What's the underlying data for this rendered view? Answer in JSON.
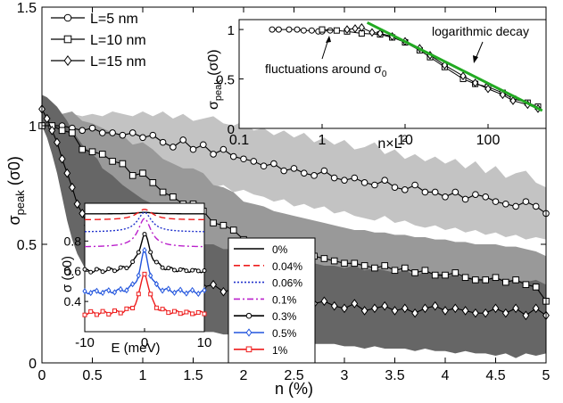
{
  "chart_data": [
    {
      "type": "line",
      "xlabel": "n (%)",
      "ylabel": "σ",
      "ylabel_sub": "peak",
      "ylabel_unit": "(σ0)",
      "xlim": [
        0,
        5
      ],
      "ylim": [
        0,
        1.5
      ],
      "x_ticks": [
        "0",
        "0.5",
        "1",
        "1.5",
        "2",
        "2.5",
        "3",
        "3.5",
        "4",
        "4.5",
        "5"
      ],
      "y_ticks": [
        "0",
        "0.5",
        "1",
        "1.5"
      ],
      "grid": false,
      "legend_position": "top-left",
      "series": [
        {
          "name": "L=5 nm",
          "marker": "circle",
          "band_color": "#c3c3c3",
          "x": [
            0,
            0.1,
            0.2,
            0.3,
            0.4,
            0.5,
            0.6,
            0.7,
            0.8,
            0.9,
            1.0,
            1.1,
            1.2,
            1.3,
            1.4,
            1.5,
            1.6,
            1.7,
            1.8,
            1.9,
            2.0,
            2.1,
            2.2,
            2.3,
            2.4,
            2.5,
            2.6,
            2.7,
            2.8,
            2.9,
            3.0,
            3.1,
            3.2,
            3.3,
            3.4,
            3.5,
            3.6,
            3.7,
            3.8,
            3.9,
            4.0,
            4.1,
            4.2,
            4.3,
            4.4,
            4.5,
            4.6,
            4.7,
            4.8,
            4.9,
            5.0
          ],
          "values": [
            1.0,
            1.0,
            1.0,
            0.99,
            0.98,
            0.99,
            0.97,
            0.97,
            0.96,
            0.97,
            0.95,
            0.96,
            0.93,
            0.91,
            0.94,
            0.9,
            0.92,
            0.88,
            0.9,
            0.87,
            0.86,
            0.85,
            0.83,
            0.84,
            0.81,
            0.82,
            0.8,
            0.79,
            0.81,
            0.78,
            0.77,
            0.78,
            0.76,
            0.75,
            0.77,
            0.74,
            0.73,
            0.75,
            0.72,
            0.72,
            0.7,
            0.72,
            0.69,
            0.71,
            0.7,
            0.68,
            0.67,
            0.66,
            0.68,
            0.66,
            0.63
          ],
          "band_upper": [
            1.0,
            1.02,
            1.03,
            1.05,
            1.04,
            1.05,
            1.04,
            1.06,
            1.05,
            1.04,
            1.06,
            1.04,
            1.06,
            1.03,
            1.05,
            1.02,
            1.03,
            1.04,
            1.01,
            1.0,
            1.02,
            0.98,
            0.99,
            0.96,
            0.98,
            0.95,
            0.97,
            0.93,
            0.95,
            0.92,
            0.94,
            0.9,
            0.91,
            0.93,
            0.88,
            0.9,
            0.86,
            0.88,
            0.85,
            0.87,
            0.84,
            0.86,
            0.82,
            0.85,
            0.8,
            0.83,
            0.78,
            0.8,
            0.81,
            0.76,
            0.74
          ],
          "band_lower": [
            1.0,
            0.98,
            0.97,
            0.94,
            0.92,
            0.9,
            0.89,
            0.87,
            0.85,
            0.84,
            0.83,
            0.82,
            0.8,
            0.78,
            0.8,
            0.77,
            0.76,
            0.74,
            0.75,
            0.72,
            0.73,
            0.71,
            0.7,
            0.68,
            0.69,
            0.66,
            0.67,
            0.65,
            0.66,
            0.63,
            0.64,
            0.62,
            0.61,
            0.6,
            0.62,
            0.59,
            0.6,
            0.58,
            0.57,
            0.58,
            0.56,
            0.57,
            0.55,
            0.56,
            0.54,
            0.55,
            0.53,
            0.54,
            0.52,
            0.53,
            0.52
          ]
        },
        {
          "name": "L=10 nm",
          "marker": "square",
          "band_color": "#999999",
          "x": [
            0,
            0.1,
            0.2,
            0.3,
            0.4,
            0.5,
            0.6,
            0.7,
            0.8,
            0.9,
            1.0,
            1.1,
            1.2,
            1.3,
            1.4,
            1.5,
            1.6,
            1.7,
            1.8,
            1.9,
            2.0,
            2.1,
            2.2,
            2.3,
            2.4,
            2.5,
            2.6,
            2.7,
            2.8,
            2.9,
            3.0,
            3.1,
            3.2,
            3.3,
            3.4,
            3.5,
            3.6,
            3.7,
            3.8,
            3.9,
            4.0,
            4.1,
            4.2,
            4.3,
            4.4,
            4.5,
            4.6,
            4.7,
            4.8,
            4.9,
            5.0
          ],
          "values": [
            1.0,
            1.0,
            0.98,
            0.97,
            0.9,
            0.89,
            0.88,
            0.85,
            0.84,
            0.79,
            0.8,
            0.76,
            0.72,
            0.7,
            0.67,
            0.67,
            0.64,
            0.59,
            0.58,
            0.56,
            0.52,
            0.51,
            0.5,
            0.48,
            0.47,
            0.46,
            0.45,
            0.45,
            0.44,
            0.43,
            0.42,
            0.42,
            0.41,
            0.4,
            0.41,
            0.39,
            0.4,
            0.38,
            0.39,
            0.37,
            0.37,
            0.38,
            0.36,
            0.35,
            0.35,
            0.36,
            0.34,
            0.35,
            0.33,
            0.32,
            0.26
          ],
          "band_upper": [
            1.0,
            1.02,
            1.05,
            1.06,
            1.02,
            1.01,
            0.99,
            0.97,
            0.96,
            0.92,
            0.93,
            0.9,
            0.86,
            0.84,
            0.82,
            0.82,
            0.8,
            0.75,
            0.74,
            0.72,
            0.68,
            0.67,
            0.66,
            0.64,
            0.63,
            0.62,
            0.61,
            0.6,
            0.59,
            0.58,
            0.57,
            0.56,
            0.56,
            0.55,
            0.55,
            0.54,
            0.54,
            0.53,
            0.53,
            0.52,
            0.52,
            0.51,
            0.51,
            0.5,
            0.5,
            0.5,
            0.49,
            0.49,
            0.48,
            0.47,
            0.45
          ],
          "band_lower": [
            1.0,
            0.96,
            0.9,
            0.86,
            0.78,
            0.75,
            0.72,
            0.68,
            0.65,
            0.62,
            0.6,
            0.57,
            0.54,
            0.52,
            0.5,
            0.48,
            0.46,
            0.42,
            0.41,
            0.39,
            0.37,
            0.35,
            0.34,
            0.33,
            0.32,
            0.31,
            0.3,
            0.3,
            0.29,
            0.28,
            0.28,
            0.27,
            0.27,
            0.26,
            0.26,
            0.25,
            0.25,
            0.24,
            0.24,
            0.23,
            0.23,
            0.22,
            0.22,
            0.22,
            0.21,
            0.21,
            0.2,
            0.2,
            0.2,
            0.19,
            0.16
          ]
        },
        {
          "name": "L=15 nm",
          "marker": "diamond",
          "band_color": "#666666",
          "x": [
            0,
            0.05,
            0.1,
            0.15,
            0.2,
            0.25,
            0.3,
            0.35,
            0.4,
            0.45,
            0.5,
            0.55,
            0.6,
            0.7,
            0.8,
            0.9,
            1.0,
            1.1,
            1.2,
            1.3,
            1.4,
            1.5,
            1.6,
            1.7,
            1.8,
            1.9,
            2.0,
            2.1,
            2.2,
            2.3,
            2.4,
            2.5,
            2.6,
            2.7,
            2.8,
            2.9,
            3.0,
            3.1,
            3.2,
            3.3,
            3.4,
            3.5,
            3.6,
            3.7,
            3.8,
            3.9,
            4.0,
            4.1,
            4.2,
            4.3,
            4.4,
            4.5,
            4.6,
            4.7,
            4.8,
            4.9,
            5.0
          ],
          "values": [
            1.07,
            1.03,
            0.98,
            0.93,
            0.86,
            0.8,
            0.74,
            0.67,
            0.63,
            0.58,
            0.55,
            0.52,
            0.55,
            0.51,
            0.5,
            0.49,
            0.46,
            0.47,
            0.42,
            0.39,
            0.36,
            0.34,
            0.32,
            0.33,
            0.3,
            0.31,
            0.29,
            0.3,
            0.27,
            0.28,
            0.27,
            0.26,
            0.27,
            0.25,
            0.26,
            0.24,
            0.23,
            0.25,
            0.22,
            0.23,
            0.24,
            0.22,
            0.23,
            0.21,
            0.23,
            0.24,
            0.22,
            0.23,
            0.22,
            0.21,
            0.21,
            0.23,
            0.21,
            0.23,
            0.2,
            0.23,
            0.2
          ],
          "band_upper": [
            1.13,
            1.12,
            1.1,
            1.08,
            1.05,
            1.02,
            0.98,
            0.95,
            0.92,
            0.9,
            0.88,
            0.86,
            0.82,
            0.79,
            0.75,
            0.72,
            0.69,
            0.67,
            0.63,
            0.6,
            0.56,
            0.53,
            0.5,
            0.5,
            0.48,
            0.48,
            0.46,
            0.47,
            0.44,
            0.45,
            0.43,
            0.43,
            0.42,
            0.42,
            0.41,
            0.41,
            0.4,
            0.41,
            0.39,
            0.4,
            0.39,
            0.38,
            0.39,
            0.37,
            0.38,
            0.38,
            0.37,
            0.37,
            0.36,
            0.36,
            0.35,
            0.36,
            0.35,
            0.35,
            0.34,
            0.35,
            0.33
          ],
          "band_lower": [
            1.0,
            0.95,
            0.88,
            0.8,
            0.7,
            0.6,
            0.52,
            0.46,
            0.42,
            0.38,
            0.35,
            0.33,
            0.32,
            0.3,
            0.28,
            0.26,
            0.25,
            0.24,
            0.2,
            0.18,
            0.16,
            0.15,
            0.13,
            0.13,
            0.12,
            0.12,
            0.11,
            0.11,
            0.1,
            0.1,
            0.09,
            0.09,
            0.09,
            0.08,
            0.08,
            0.08,
            0.07,
            0.07,
            0.06,
            0.07,
            0.06,
            0.06,
            0.06,
            0.05,
            0.06,
            0.05,
            0.05,
            0.04,
            0.05,
            0.04,
            0.04,
            0.03,
            0.04,
            0.02,
            0.04,
            0.03,
            0.04
          ]
        }
      ]
    },
    {
      "type": "line",
      "xlabel": "n×L",
      "xlabel_sup": "2",
      "ylabel": "σ",
      "ylabel_sub": "peak",
      "ylabel_unit": "(σ0)",
      "x_scale": "log",
      "xlim": [
        0.1,
        500
      ],
      "ylim": [
        0,
        1.1
      ],
      "x_ticks": [
        "0.1",
        "1",
        "10",
        "100"
      ],
      "y_ticks": [
        "0",
        "0.5",
        "1"
      ],
      "annotations": [
        {
          "text": "fluctuations around σ",
          "sub": "0"
        },
        {
          "text": "logarithmic decay"
        }
      ],
      "series": [
        {
          "name": "L=5 nm",
          "marker": "circle",
          "x": [
            0.25,
            0.3,
            0.4,
            0.5,
            0.6,
            0.75,
            0.9,
            1.0,
            1.25
          ],
          "values": [
            1.0,
            1.0,
            1.0,
            1.0,
            0.99,
            0.99,
            0.98,
            0.98,
            0.99
          ]
        },
        {
          "name": "L=10 nm",
          "marker": "square",
          "x": [
            1.0,
            1.5,
            2,
            3,
            5,
            7,
            10,
            15,
            20,
            30,
            50,
            70,
            100,
            150,
            200,
            300,
            400
          ],
          "values": [
            1.0,
            0.99,
            0.98,
            0.96,
            0.95,
            0.92,
            0.87,
            0.79,
            0.72,
            0.62,
            0.5,
            0.45,
            0.42,
            0.36,
            0.3,
            0.26,
            0.22
          ]
        },
        {
          "name": "L=15 nm",
          "marker": "diamond",
          "x": [
            2,
            2.5,
            3,
            4,
            5,
            7,
            10,
            15,
            20,
            30,
            50,
            70,
            100,
            150,
            200,
            300,
            400
          ],
          "values": [
            1.0,
            1.01,
            1.02,
            0.97,
            0.96,
            0.93,
            0.88,
            0.81,
            0.74,
            0.64,
            0.53,
            0.46,
            0.4,
            0.34,
            0.28,
            0.24,
            0.2
          ]
        },
        {
          "name": "",
          "marker": "none",
          "color": "#22aa22",
          "x": [
            3.5,
            450
          ],
          "values": [
            1.07,
            0.18
          ]
        }
      ]
    },
    {
      "type": "line",
      "xlabel": "E (meV)",
      "ylabel": "σ",
      "ylabel_unit": "(σ0)",
      "xlim": [
        -10,
        10
      ],
      "ylim": [
        0.2,
        1.05
      ],
      "x_ticks": [
        "-10",
        "0",
        "10"
      ],
      "y_ticks": [
        "0.4",
        "0.6",
        "0.8"
      ],
      "series": [
        {
          "name": "0%",
          "color": "#000000",
          "style": "solid",
          "marker": "none",
          "baseline": 0.98,
          "peak": 0.01,
          "width": 1.5
        },
        {
          "name": "0.04%",
          "color": "#ee1c1c",
          "style": "dashed",
          "marker": "none",
          "baseline": 0.94,
          "peak": 0.07,
          "width": 1.6
        },
        {
          "name": "0.06%",
          "color": "#2233cc",
          "style": "dotted",
          "marker": "none",
          "baseline": 0.86,
          "peak": 0.13,
          "width": 1.4
        },
        {
          "name": "0.1%",
          "color": "#bb22cc",
          "style": "dashdot",
          "marker": "none",
          "baseline": 0.76,
          "peak": 0.19,
          "width": 1.3
        },
        {
          "name": "0.3%",
          "color": "#000000",
          "style": "solid",
          "marker": "circle",
          "baseline": 0.6,
          "peak": 0.24,
          "width": 1.1
        },
        {
          "name": "0.5%",
          "color": "#2255dd",
          "style": "solid",
          "marker": "diamond",
          "baseline": 0.46,
          "peak": 0.27,
          "width": 0.9
        },
        {
          "name": "1%",
          "color": "#ee1c1c",
          "style": "solid",
          "marker": "square",
          "baseline": 0.32,
          "peak": 0.27,
          "width": 0.9
        }
      ]
    }
  ]
}
